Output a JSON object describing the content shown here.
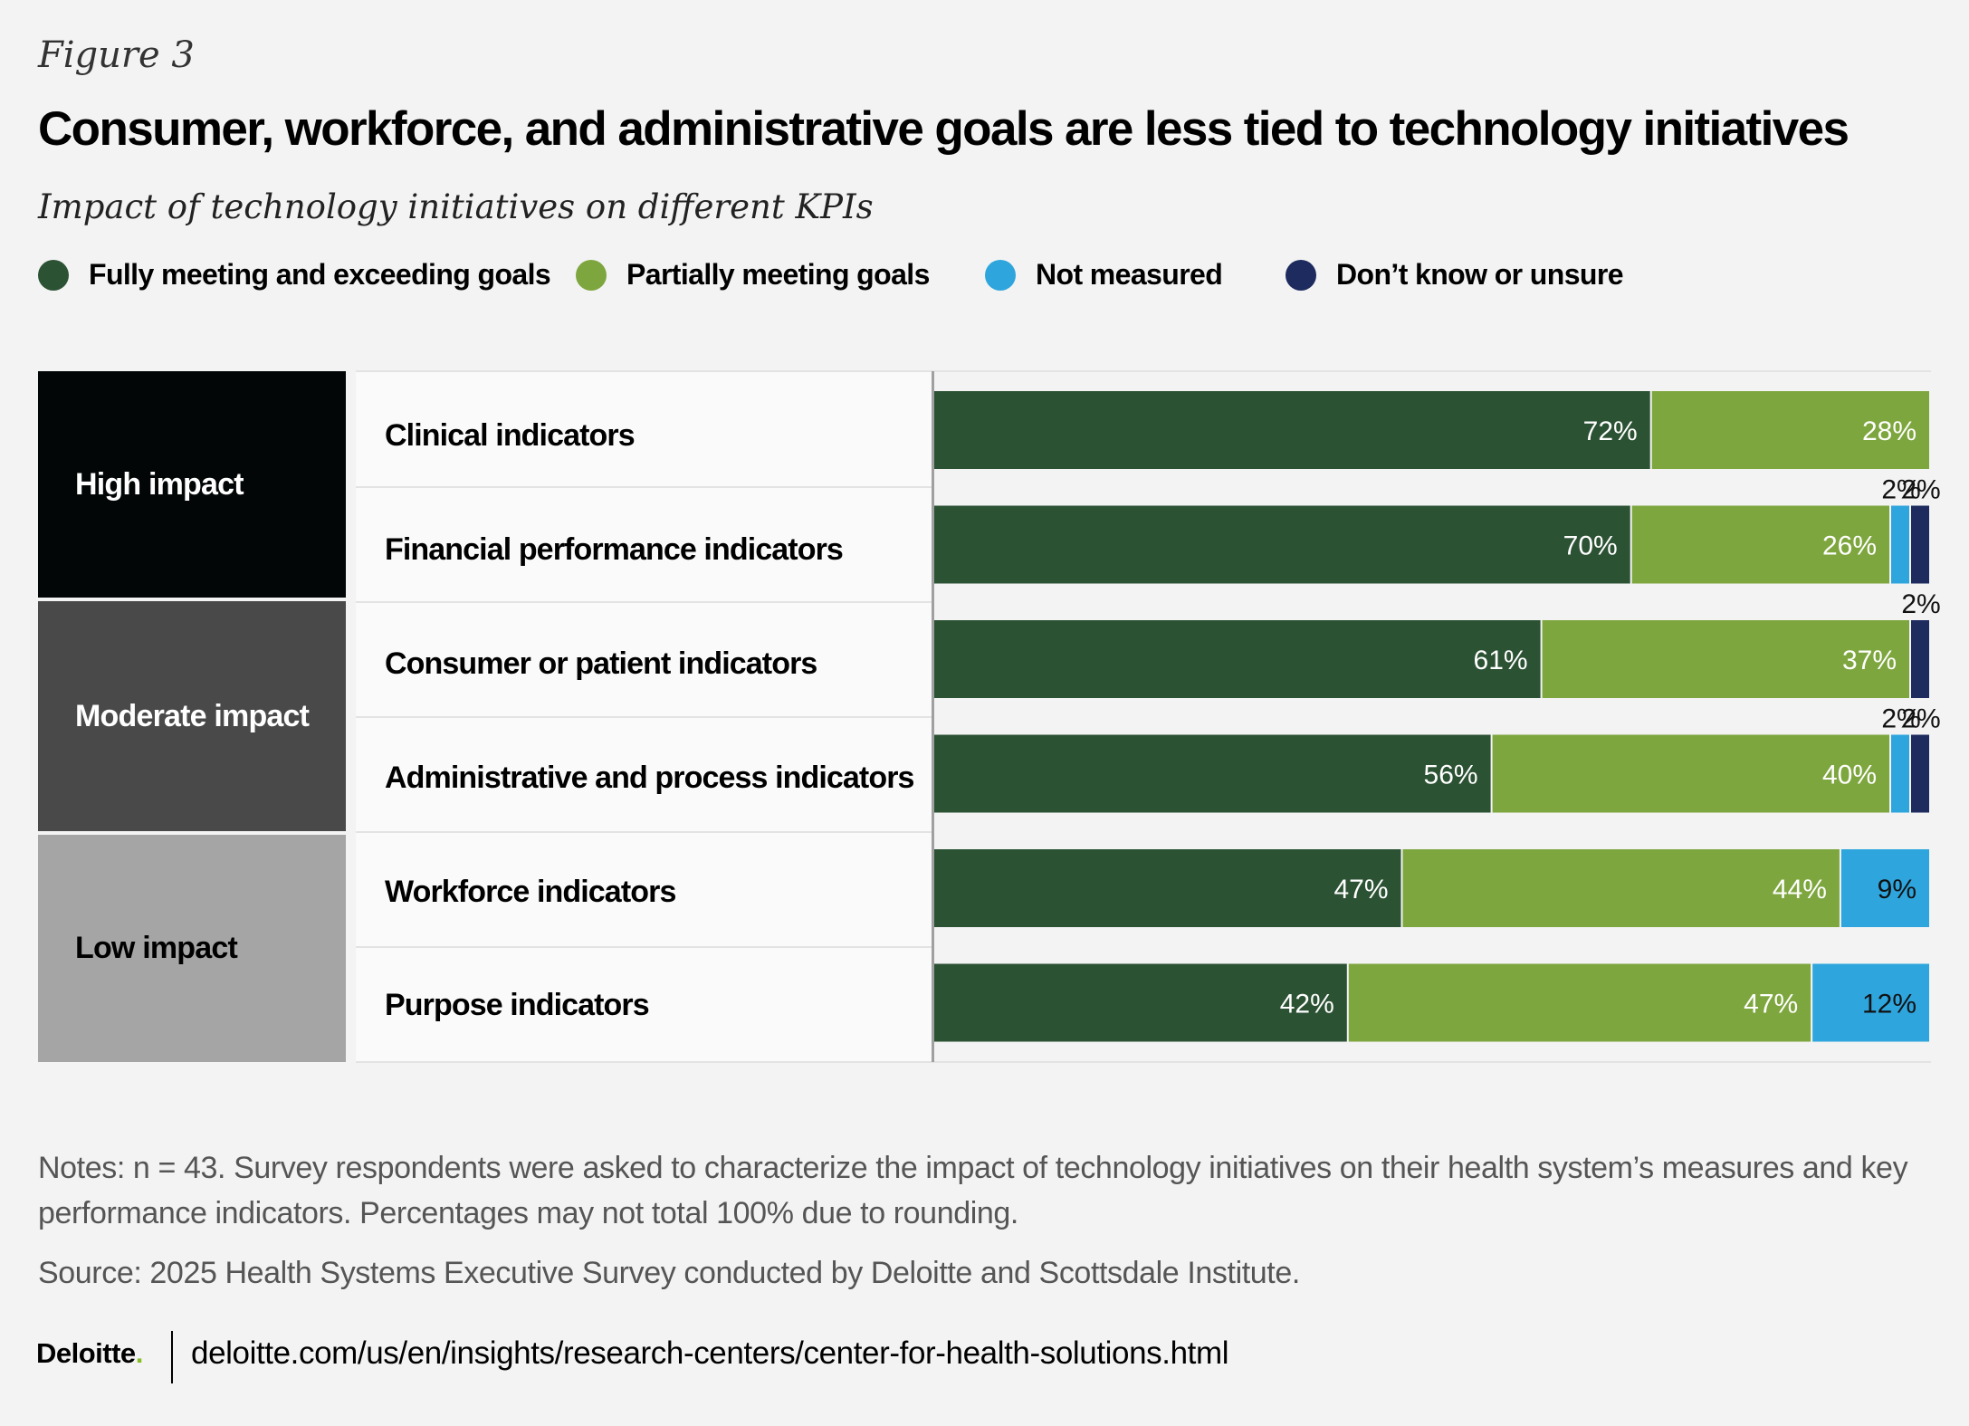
{
  "figure_label": "Figure 3",
  "title": "Consumer, workforce, and administrative goals are less tied to technology initiatives",
  "subtitle": "Impact of technology initiatives on different KPIs",
  "notes": "Notes: n = 43. Survey respondents were asked to characterize the impact of technology initiatives on their health system’s measures and key performance indicators. Percentages may not total 100% due to rounding.",
  "source": "Source: 2025 Health Systems Executive Survey conducted by Deloitte and Scottsdale Institute.",
  "footer": {
    "logo_text": "Deloitte",
    "logo_dot": ".",
    "url": "deloitte.com/us/en/insights/research-centers/center-for-health-solutions.html"
  },
  "colors": {
    "fully": "#2c5234",
    "partially": "#7ea63e",
    "not_measured": "#2ea5dd",
    "dont_know": "#1d2b5e",
    "high": "#020607",
    "moderate": "#494949",
    "low": "#a5a5a5"
  },
  "chart_data": {
    "type": "bar",
    "orientation": "horizontal",
    "stacked": true,
    "legend": [
      {
        "name": "Fully meeting and exceeding goals",
        "color": "#2c5234"
      },
      {
        "name": "Partially meeting goals",
        "color": "#7ea63e"
      },
      {
        "name": "Not measured",
        "color": "#2ea5dd"
      },
      {
        "name": "Don’t know or unsure",
        "color": "#1d2b5e"
      }
    ],
    "groups": [
      {
        "name": "High impact",
        "rows": 2,
        "bg": "#020607",
        "text_color": "#ffffff"
      },
      {
        "name": "Moderate impact",
        "rows": 2,
        "bg": "#494949",
        "text_color": "#ffffff"
      },
      {
        "name": "Low impact",
        "rows": 2,
        "bg": "#a5a5a5",
        "text_color": "#000000"
      }
    ],
    "categories": [
      "Clinical indicators",
      "Financial performance indicators",
      "Consumer or patient indicators",
      "Administrative and process indicators",
      "Workforce indicators",
      "Purpose indicators"
    ],
    "series": [
      {
        "name": "Fully meeting and exceeding goals",
        "values": [
          72,
          70,
          61,
          56,
          47,
          42
        ]
      },
      {
        "name": "Partially meeting goals",
        "values": [
          28,
          26,
          37,
          40,
          44,
          47
        ]
      },
      {
        "name": "Not measured",
        "values": [
          0,
          2,
          0,
          2,
          9,
          12
        ]
      },
      {
        "name": "Don’t know or unsure",
        "values": [
          0,
          2,
          2,
          2,
          0,
          0
        ]
      }
    ],
    "value_suffix": "%",
    "xlim": [
      0,
      100
    ],
    "grid": false,
    "legend_position": "top"
  }
}
